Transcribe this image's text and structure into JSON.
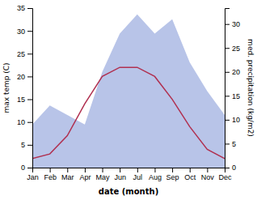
{
  "chart_data": {
    "type": "line",
    "categories": [
      "Jan",
      "Feb",
      "Mar",
      "Apr",
      "May",
      "Jun",
      "Jul",
      "Aug",
      "Sep",
      "Oct",
      "Nov",
      "Dec"
    ],
    "xlabel": "date (month)",
    "ylabel": "max temp (C)",
    "y2label": "med. precipitation (kg/m2)",
    "ylim": [
      0,
      35
    ],
    "yticks": [
      0,
      5,
      10,
      15,
      20,
      25,
      30,
      35
    ],
    "y2lim": [
      0,
      33.33
    ],
    "y2ticks": [
      0,
      5,
      10,
      15,
      20,
      25,
      30
    ],
    "grid": false,
    "series": [
      {
        "type": "area",
        "axis": "y2",
        "color": "#b8c4e8",
        "values": [
          9,
          13,
          11,
          9,
          20,
          28,
          32,
          28,
          31,
          22,
          16,
          11
        ]
      },
      {
        "type": "line",
        "color": "#b03050",
        "values": [
          2,
          3,
          7,
          14,
          20,
          22,
          22,
          20,
          15,
          9,
          4,
          2
        ]
      }
    ]
  }
}
